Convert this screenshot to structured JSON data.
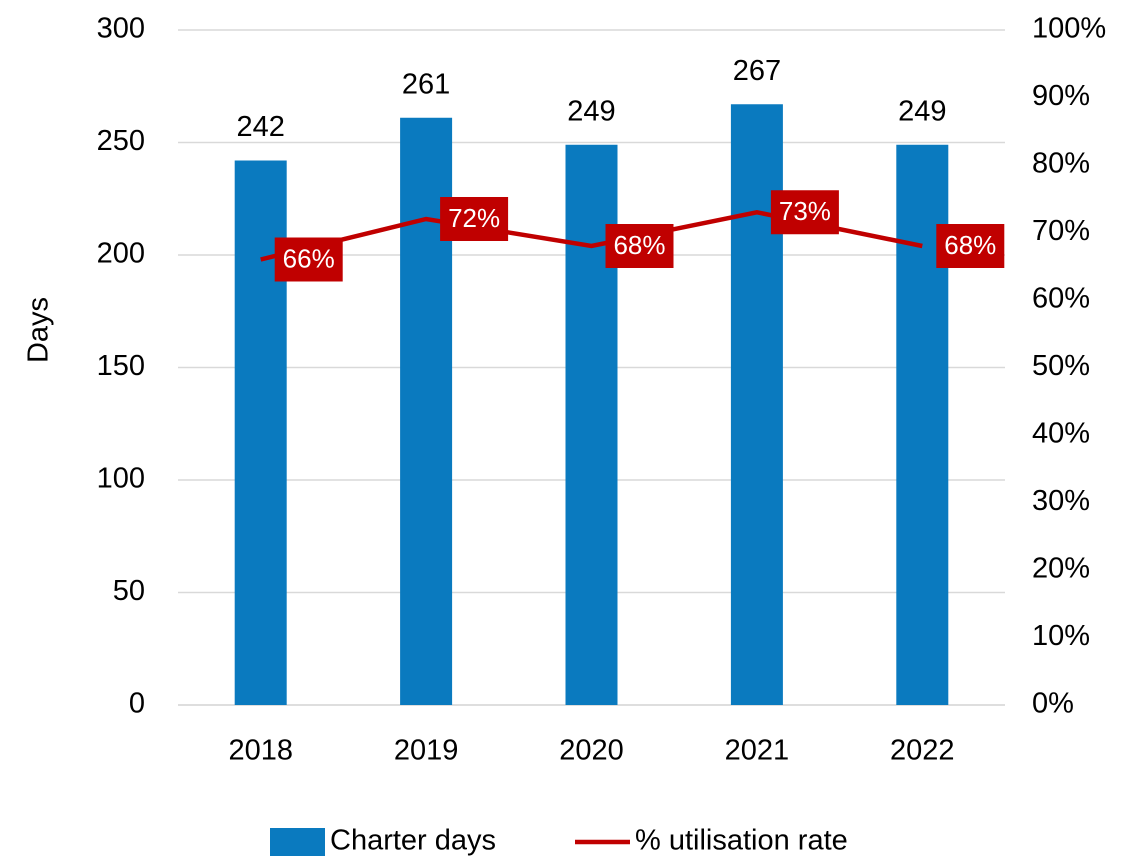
{
  "chart_data": {
    "type": "bar",
    "categories": [
      "2018",
      "2019",
      "2020",
      "2021",
      "2022"
    ],
    "ylabel": "Days",
    "ylim": [
      0,
      300
    ],
    "yticks": [
      0,
      50,
      100,
      150,
      200,
      250,
      300
    ],
    "y2lim": [
      0,
      100
    ],
    "y2ticks": [
      {
        "value": 0,
        "label": "0%"
      },
      {
        "value": 10,
        "label": "10%"
      },
      {
        "value": 20,
        "label": "20%"
      },
      {
        "value": 30,
        "label": "30%"
      },
      {
        "value": 40,
        "label": "40%"
      },
      {
        "value": 50,
        "label": "50%"
      },
      {
        "value": 60,
        "label": "60%"
      },
      {
        "value": 70,
        "label": "70%"
      },
      {
        "value": 80,
        "label": "80%"
      },
      {
        "value": 90,
        "label": "90%"
      },
      {
        "value": 100,
        "label": "100%"
      }
    ],
    "grid": true,
    "legend": "bottom",
    "series": [
      {
        "name": "Charter days",
        "type": "bar",
        "color": "#0a7abf",
        "values": [
          242,
          261,
          249,
          267,
          249
        ]
      },
      {
        "name": "% utilisation rate",
        "type": "line",
        "axis": "y2",
        "color": "#c00000",
        "values": [
          66,
          72,
          68,
          73,
          68
        ],
        "value_labels": [
          "66%",
          "72%",
          "68%",
          "73%",
          "68%"
        ]
      }
    ]
  }
}
